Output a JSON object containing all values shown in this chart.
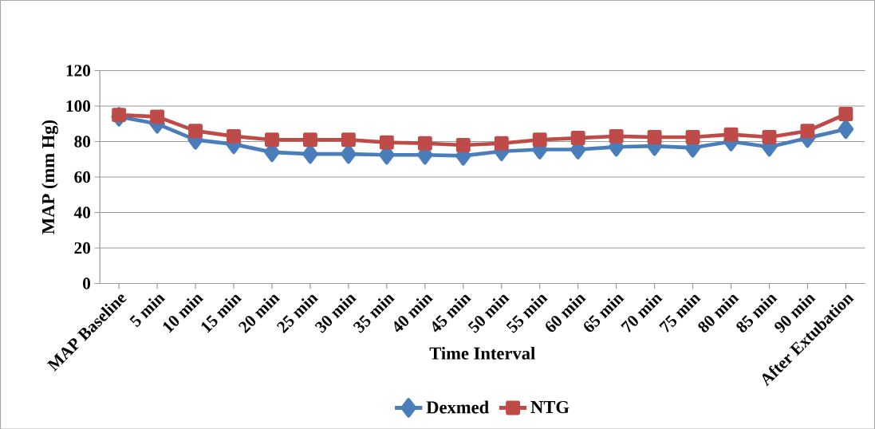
{
  "chart_data": {
    "type": "line",
    "xlabel": "Time Interval",
    "ylabel": "MAP (mm Hg)",
    "categories": [
      "MAP Baseline",
      "5 min",
      "10 min",
      "15 min",
      "20 min",
      "25 min",
      "30 min",
      "35 min",
      "40 min",
      "45 min",
      "50 min",
      "55 min",
      "60 min",
      "65 min",
      "70 min",
      "75 min",
      "80 min",
      "85 min",
      "90  min",
      "After Extubation"
    ],
    "series": [
      {
        "name": "Dexmed",
        "color": "#4a7ebb",
        "marker": "diamond",
        "values": [
          94,
          90,
          81,
          78.5,
          74,
          73,
          73,
          72.5,
          72.5,
          72,
          74.5,
          75.5,
          75.5,
          77,
          77.5,
          76.5,
          80,
          77,
          82,
          87
        ]
      },
      {
        "name": "NTG",
        "color": "#be4b48",
        "marker": "square",
        "values": [
          95,
          94,
          86,
          83,
          81,
          81,
          81,
          79.5,
          79,
          78,
          79,
          81,
          82,
          83,
          82.5,
          82.5,
          84,
          82.5,
          86,
          95.5
        ]
      }
    ],
    "ylim": [
      0,
      120
    ],
    "yticks": [
      0,
      20,
      40,
      60,
      80,
      100,
      120
    ],
    "grid": "y",
    "legend": "bottom",
    "line_style": "solid"
  }
}
